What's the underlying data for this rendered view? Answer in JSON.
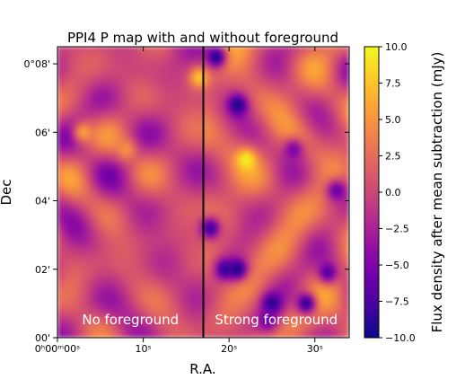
{
  "chart_data": {
    "type": "heatmap",
    "title": "PPI4 P map with and without foreground",
    "xlabel": "R.A.",
    "ylabel": "Dec",
    "x_ticks": [
      {
        "label": "0ʰ00ᵐ00ˢ",
        "value_s": 0
      },
      {
        "label": "10ˢ",
        "value_s": 10
      },
      {
        "label": "20ˢ",
        "value_s": 20
      },
      {
        "label": "30ˢ",
        "value_s": 30
      }
    ],
    "y_ticks": [
      {
        "label": "00'",
        "value_arcmin": 0
      },
      {
        "label": "02'",
        "value_arcmin": 2
      },
      {
        "label": "04'",
        "value_arcmin": 4
      },
      {
        "label": "06'",
        "value_arcmin": 6
      },
      {
        "label": "0°08'",
        "value_arcmin": 8
      }
    ],
    "xlim_s": [
      0,
      34
    ],
    "ylim_arcmin": [
      0,
      8.5
    ],
    "divider_x_s": 17,
    "regions": [
      {
        "label": "No foreground",
        "x_range_s": [
          0,
          17
        ],
        "baseline": 0.0,
        "contrast": 3.0
      },
      {
        "label": "Strong foreground",
        "x_range_s": [
          17,
          34
        ],
        "baseline": 1.2,
        "contrast": 3.5
      }
    ],
    "features": [
      {
        "x_s": 16.5,
        "y_arcmin": 7.6,
        "value": 8.0
      },
      {
        "x_s": 22.0,
        "y_arcmin": 5.2,
        "value": 10.0
      },
      {
        "x_s": 18.5,
        "y_arcmin": 8.2,
        "value": -10.0
      },
      {
        "x_s": 21.0,
        "y_arcmin": 6.8,
        "value": -10.0
      },
      {
        "x_s": 17.8,
        "y_arcmin": 3.2,
        "value": -9.0
      },
      {
        "x_s": 21.0,
        "y_arcmin": 2.0,
        "value": -10.0
      },
      {
        "x_s": 19.5,
        "y_arcmin": 2.0,
        "value": -9.0
      },
      {
        "x_s": 25.0,
        "y_arcmin": 1.0,
        "value": -9.5
      },
      {
        "x_s": 29.0,
        "y_arcmin": 1.0,
        "value": -9.5
      },
      {
        "x_s": 31.5,
        "y_arcmin": 1.9,
        "value": -7.5
      },
      {
        "x_s": 32.5,
        "y_arcmin": 4.3,
        "value": -6.5
      },
      {
        "x_s": 27.5,
        "y_arcmin": 5.5,
        "value": -5.5
      },
      {
        "x_s": 24.5,
        "y_arcmin": 0.5,
        "value": -6.0
      },
      {
        "x_s": 3.0,
        "y_arcmin": 6.0,
        "value": 6.0
      },
      {
        "x_s": 8.0,
        "y_arcmin": 5.5,
        "value": 5.0
      }
    ],
    "colorbar": {
      "label": "Flux density after mean subtraction (mJy)",
      "range": [
        -10.0,
        10.0
      ],
      "ticks": [
        "10.0",
        "7.5",
        "5.0",
        "2.5",
        "0.0",
        "−2.5",
        "−5.0",
        "−7.5",
        "−10.0"
      ],
      "colormap": "plasma",
      "colors": [
        "#0d0887",
        "#41049d",
        "#6a00a8",
        "#8f0da4",
        "#b12a90",
        "#cc4778",
        "#e16462",
        "#f2844b",
        "#fca636",
        "#fcce25",
        "#f0f921"
      ]
    }
  }
}
